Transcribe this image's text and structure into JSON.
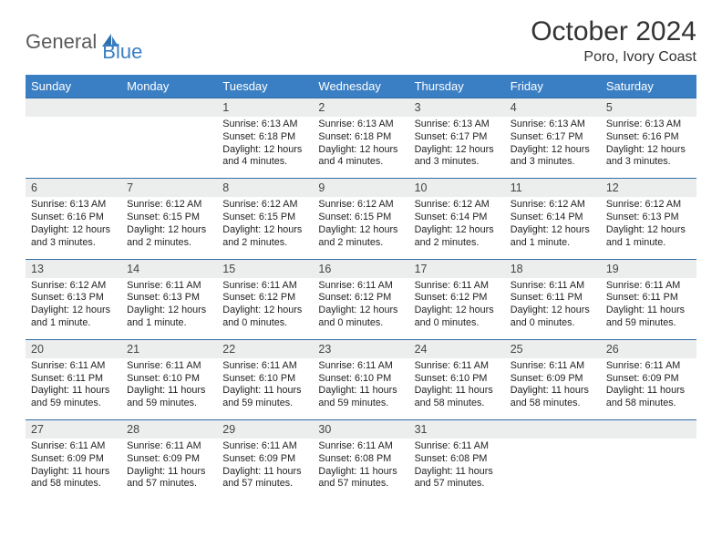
{
  "logo": {
    "part1": "General",
    "part2": "Blue"
  },
  "title": "October 2024",
  "location": "Poro, Ivory Coast",
  "colors": {
    "header_bg": "#3a7fc4",
    "header_text": "#ffffff",
    "daynum_bg": "#eceded",
    "border": "#2f6fa8",
    "body_text": "#222222"
  },
  "weekdays": [
    "Sunday",
    "Monday",
    "Tuesday",
    "Wednesday",
    "Thursday",
    "Friday",
    "Saturday"
  ],
  "weeks": [
    [
      {
        "num": "",
        "lines": [
          "",
          "",
          "",
          ""
        ]
      },
      {
        "num": "",
        "lines": [
          "",
          "",
          "",
          ""
        ]
      },
      {
        "num": "1",
        "lines": [
          "Sunrise: 6:13 AM",
          "Sunset: 6:18 PM",
          "Daylight: 12 hours",
          "and 4 minutes."
        ]
      },
      {
        "num": "2",
        "lines": [
          "Sunrise: 6:13 AM",
          "Sunset: 6:18 PM",
          "Daylight: 12 hours",
          "and 4 minutes."
        ]
      },
      {
        "num": "3",
        "lines": [
          "Sunrise: 6:13 AM",
          "Sunset: 6:17 PM",
          "Daylight: 12 hours",
          "and 3 minutes."
        ]
      },
      {
        "num": "4",
        "lines": [
          "Sunrise: 6:13 AM",
          "Sunset: 6:17 PM",
          "Daylight: 12 hours",
          "and 3 minutes."
        ]
      },
      {
        "num": "5",
        "lines": [
          "Sunrise: 6:13 AM",
          "Sunset: 6:16 PM",
          "Daylight: 12 hours",
          "and 3 minutes."
        ]
      }
    ],
    [
      {
        "num": "6",
        "lines": [
          "Sunrise: 6:13 AM",
          "Sunset: 6:16 PM",
          "Daylight: 12 hours",
          "and 3 minutes."
        ]
      },
      {
        "num": "7",
        "lines": [
          "Sunrise: 6:12 AM",
          "Sunset: 6:15 PM",
          "Daylight: 12 hours",
          "and 2 minutes."
        ]
      },
      {
        "num": "8",
        "lines": [
          "Sunrise: 6:12 AM",
          "Sunset: 6:15 PM",
          "Daylight: 12 hours",
          "and 2 minutes."
        ]
      },
      {
        "num": "9",
        "lines": [
          "Sunrise: 6:12 AM",
          "Sunset: 6:15 PM",
          "Daylight: 12 hours",
          "and 2 minutes."
        ]
      },
      {
        "num": "10",
        "lines": [
          "Sunrise: 6:12 AM",
          "Sunset: 6:14 PM",
          "Daylight: 12 hours",
          "and 2 minutes."
        ]
      },
      {
        "num": "11",
        "lines": [
          "Sunrise: 6:12 AM",
          "Sunset: 6:14 PM",
          "Daylight: 12 hours",
          "and 1 minute."
        ]
      },
      {
        "num": "12",
        "lines": [
          "Sunrise: 6:12 AM",
          "Sunset: 6:13 PM",
          "Daylight: 12 hours",
          "and 1 minute."
        ]
      }
    ],
    [
      {
        "num": "13",
        "lines": [
          "Sunrise: 6:12 AM",
          "Sunset: 6:13 PM",
          "Daylight: 12 hours",
          "and 1 minute."
        ]
      },
      {
        "num": "14",
        "lines": [
          "Sunrise: 6:11 AM",
          "Sunset: 6:13 PM",
          "Daylight: 12 hours",
          "and 1 minute."
        ]
      },
      {
        "num": "15",
        "lines": [
          "Sunrise: 6:11 AM",
          "Sunset: 6:12 PM",
          "Daylight: 12 hours",
          "and 0 minutes."
        ]
      },
      {
        "num": "16",
        "lines": [
          "Sunrise: 6:11 AM",
          "Sunset: 6:12 PM",
          "Daylight: 12 hours",
          "and 0 minutes."
        ]
      },
      {
        "num": "17",
        "lines": [
          "Sunrise: 6:11 AM",
          "Sunset: 6:12 PM",
          "Daylight: 12 hours",
          "and 0 minutes."
        ]
      },
      {
        "num": "18",
        "lines": [
          "Sunrise: 6:11 AM",
          "Sunset: 6:11 PM",
          "Daylight: 12 hours",
          "and 0 minutes."
        ]
      },
      {
        "num": "19",
        "lines": [
          "Sunrise: 6:11 AM",
          "Sunset: 6:11 PM",
          "Daylight: 11 hours",
          "and 59 minutes."
        ]
      }
    ],
    [
      {
        "num": "20",
        "lines": [
          "Sunrise: 6:11 AM",
          "Sunset: 6:11 PM",
          "Daylight: 11 hours",
          "and 59 minutes."
        ]
      },
      {
        "num": "21",
        "lines": [
          "Sunrise: 6:11 AM",
          "Sunset: 6:10 PM",
          "Daylight: 11 hours",
          "and 59 minutes."
        ]
      },
      {
        "num": "22",
        "lines": [
          "Sunrise: 6:11 AM",
          "Sunset: 6:10 PM",
          "Daylight: 11 hours",
          "and 59 minutes."
        ]
      },
      {
        "num": "23",
        "lines": [
          "Sunrise: 6:11 AM",
          "Sunset: 6:10 PM",
          "Daylight: 11 hours",
          "and 59 minutes."
        ]
      },
      {
        "num": "24",
        "lines": [
          "Sunrise: 6:11 AM",
          "Sunset: 6:10 PM",
          "Daylight: 11 hours",
          "and 58 minutes."
        ]
      },
      {
        "num": "25",
        "lines": [
          "Sunrise: 6:11 AM",
          "Sunset: 6:09 PM",
          "Daylight: 11 hours",
          "and 58 minutes."
        ]
      },
      {
        "num": "26",
        "lines": [
          "Sunrise: 6:11 AM",
          "Sunset: 6:09 PM",
          "Daylight: 11 hours",
          "and 58 minutes."
        ]
      }
    ],
    [
      {
        "num": "27",
        "lines": [
          "Sunrise: 6:11 AM",
          "Sunset: 6:09 PM",
          "Daylight: 11 hours",
          "and 58 minutes."
        ]
      },
      {
        "num": "28",
        "lines": [
          "Sunrise: 6:11 AM",
          "Sunset: 6:09 PM",
          "Daylight: 11 hours",
          "and 57 minutes."
        ]
      },
      {
        "num": "29",
        "lines": [
          "Sunrise: 6:11 AM",
          "Sunset: 6:09 PM",
          "Daylight: 11 hours",
          "and 57 minutes."
        ]
      },
      {
        "num": "30",
        "lines": [
          "Sunrise: 6:11 AM",
          "Sunset: 6:08 PM",
          "Daylight: 11 hours",
          "and 57 minutes."
        ]
      },
      {
        "num": "31",
        "lines": [
          "Sunrise: 6:11 AM",
          "Sunset: 6:08 PM",
          "Daylight: 11 hours",
          "and 57 minutes."
        ]
      },
      {
        "num": "",
        "lines": [
          "",
          "",
          "",
          ""
        ]
      },
      {
        "num": "",
        "lines": [
          "",
          "",
          "",
          ""
        ]
      }
    ]
  ]
}
